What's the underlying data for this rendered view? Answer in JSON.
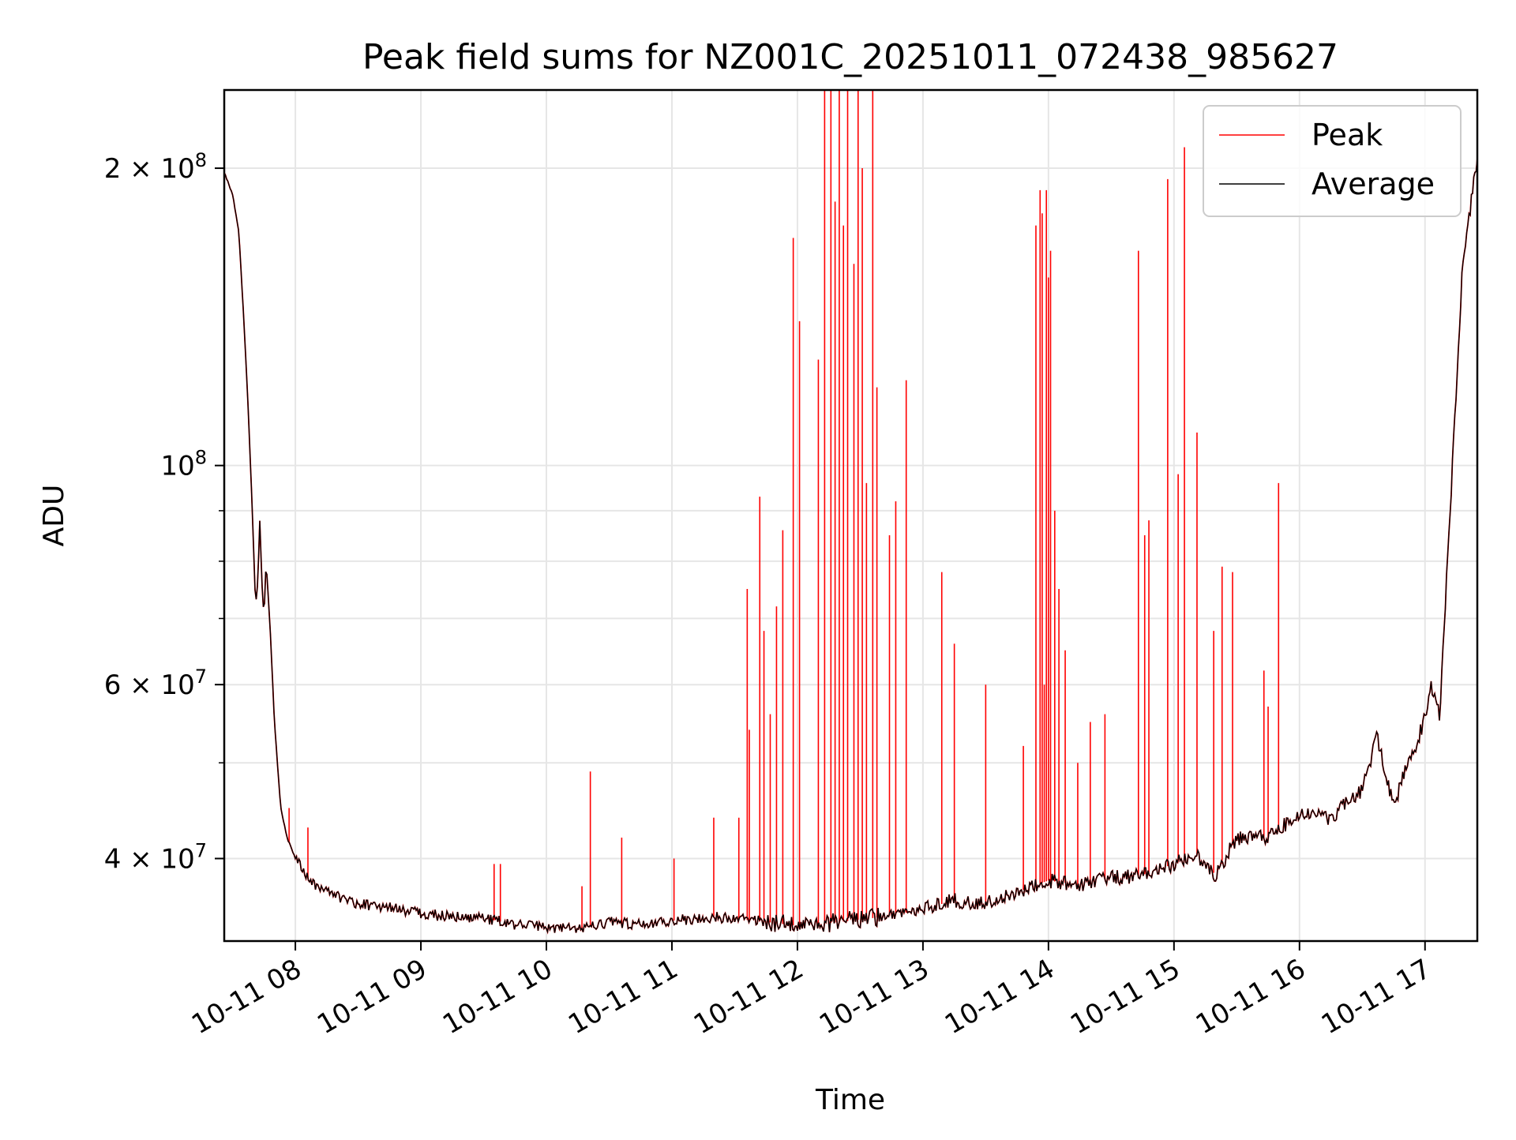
{
  "chart_data": {
    "type": "line",
    "title": "Peak field sums for NZ001C_20251011_072438_985627",
    "xlabel": "Time",
    "ylabel": "ADU",
    "yscale": "log",
    "ylim": [
      33000000,
      240000000
    ],
    "xlim": [
      "2025-10-11 07:26",
      "2025-10-11 17:25"
    ],
    "grid": true,
    "legend_position": "top-right",
    "x_ticks": [
      "2025-10-11 08:00",
      "2025-10-11 09:00",
      "2025-10-11 10:00",
      "2025-10-11 11:00",
      "2025-10-11 12:00",
      "2025-10-11 13:00",
      "2025-10-11 14:00",
      "2025-10-11 15:00",
      "2025-10-11 16:00",
      "2025-10-11 17:00"
    ],
    "x_tick_labels": [
      "10-11 08",
      "10-11 09",
      "10-11 10",
      "10-11 11",
      "10-11 12",
      "10-11 13",
      "10-11 14",
      "10-11 15",
      "10-11 16",
      "10-11 17"
    ],
    "y_ticks": [
      {
        "value": 40000000,
        "base": "4 × 10",
        "exp": "7"
      },
      {
        "value": 60000000,
        "base": "6 × 10",
        "exp": "7"
      },
      {
        "value": 100000000,
        "base": "10",
        "exp": "8"
      },
      {
        "value": 200000000,
        "base": "2 × 10",
        "exp": "8"
      }
    ],
    "series": [
      {
        "name": "Average",
        "color": "#000000",
        "points": [
          [
            "2025-10-11 07:26",
            198000000
          ],
          [
            "2025-10-11 07:30",
            188000000
          ],
          [
            "2025-10-11 07:33",
            172000000
          ],
          [
            "2025-10-11 07:35",
            145000000
          ],
          [
            "2025-10-11 07:37",
            120000000
          ],
          [
            "2025-10-11 07:39",
            95000000
          ],
          [
            "2025-10-11 07:41",
            72000000
          ],
          [
            "2025-10-11 07:42",
            76000000
          ],
          [
            "2025-10-11 07:43",
            88000000
          ],
          [
            "2025-10-11 07:44",
            76000000
          ],
          [
            "2025-10-11 07:45",
            70000000
          ],
          [
            "2025-10-11 07:46",
            80000000
          ],
          [
            "2025-10-11 07:48",
            68000000
          ],
          [
            "2025-10-11 07:50",
            55000000
          ],
          [
            "2025-10-11 07:53",
            45000000
          ],
          [
            "2025-10-11 07:56",
            42000000
          ],
          [
            "2025-10-11 08:00",
            40000000
          ],
          [
            "2025-10-11 08:05",
            38500000
          ],
          [
            "2025-10-11 08:10",
            37500000
          ],
          [
            "2025-10-11 08:20",
            36600000
          ],
          [
            "2025-10-11 08:30",
            36000000
          ],
          [
            "2025-10-11 08:45",
            35700000
          ],
          [
            "2025-10-11 09:00",
            35200000
          ],
          [
            "2025-10-11 09:15",
            34900000
          ],
          [
            "2025-10-11 09:30",
            34800000
          ],
          [
            "2025-10-11 09:45",
            34300000
          ],
          [
            "2025-10-11 10:00",
            34100000
          ],
          [
            "2025-10-11 10:15",
            33900000
          ],
          [
            "2025-10-11 10:30",
            34500000
          ],
          [
            "2025-10-11 10:45",
            34300000
          ],
          [
            "2025-10-11 11:00",
            34600000
          ],
          [
            "2025-10-11 11:20",
            34900000
          ],
          [
            "2025-10-11 11:40",
            34600000
          ],
          [
            "2025-10-11 12:00",
            34200000
          ],
          [
            "2025-10-11 12:20",
            34500000
          ],
          [
            "2025-10-11 12:40",
            34900000
          ],
          [
            "2025-10-11 13:00",
            35500000
          ],
          [
            "2025-10-11 13:15",
            36300000
          ],
          [
            "2025-10-11 13:30",
            36000000
          ],
          [
            "2025-10-11 13:45",
            37000000
          ],
          [
            "2025-10-11 14:00",
            38000000
          ],
          [
            "2025-10-11 14:15",
            37600000
          ],
          [
            "2025-10-11 14:30",
            38200000
          ],
          [
            "2025-10-11 14:45",
            38500000
          ],
          [
            "2025-10-11 15:00",
            39500000
          ],
          [
            "2025-10-11 15:10",
            40500000
          ],
          [
            "2025-10-11 15:20",
            38500000
          ],
          [
            "2025-10-11 15:30",
            42000000
          ],
          [
            "2025-10-11 15:45",
            42000000
          ],
          [
            "2025-10-11 16:00",
            44500000
          ],
          [
            "2025-10-11 16:15",
            44000000
          ],
          [
            "2025-10-11 16:30",
            47000000
          ],
          [
            "2025-10-11 16:37",
            53000000
          ],
          [
            "2025-10-11 16:45",
            45000000
          ],
          [
            "2025-10-11 16:50",
            49000000
          ],
          [
            "2025-10-11 16:55",
            51000000
          ],
          [
            "2025-10-11 17:00",
            56000000
          ],
          [
            "2025-10-11 17:03",
            60000000
          ],
          [
            "2025-10-11 17:07",
            56000000
          ],
          [
            "2025-10-11 17:12",
            90000000
          ],
          [
            "2025-10-11 17:18",
            160000000
          ],
          [
            "2025-10-11 17:25",
            205000000
          ]
        ]
      },
      {
        "name": "Peak",
        "color": "#ff0000",
        "spikes": [
          [
            "2025-10-11 07:57",
            45000000
          ],
          [
            "2025-10-11 08:06",
            43000000
          ],
          [
            "2025-10-11 09:35",
            39500000
          ],
          [
            "2025-10-11 09:38",
            39500000
          ],
          [
            "2025-10-11 10:17",
            37500000
          ],
          [
            "2025-10-11 10:21",
            49000000
          ],
          [
            "2025-10-11 10:36",
            42000000
          ],
          [
            "2025-10-11 11:01",
            40000000
          ],
          [
            "2025-10-11 11:20",
            44000000
          ],
          [
            "2025-10-11 11:32",
            44000000
          ],
          [
            "2025-10-11 11:36",
            75000000
          ],
          [
            "2025-10-11 11:37",
            54000000
          ],
          [
            "2025-10-11 11:42",
            93000000
          ],
          [
            "2025-10-11 11:44",
            68000000
          ],
          [
            "2025-10-11 11:47",
            56000000
          ],
          [
            "2025-10-11 11:50",
            72000000
          ],
          [
            "2025-10-11 11:53",
            86000000
          ],
          [
            "2025-10-11 11:58",
            170000000
          ],
          [
            "2025-10-11 12:01",
            140000000
          ],
          [
            "2025-10-11 12:10",
            128000000
          ],
          [
            "2025-10-11 12:13",
            240000000
          ],
          [
            "2025-10-11 12:16",
            240000000
          ],
          [
            "2025-10-11 12:18",
            185000000
          ],
          [
            "2025-10-11 12:20",
            240000000
          ],
          [
            "2025-10-11 12:22",
            175000000
          ],
          [
            "2025-10-11 12:24",
            240000000
          ],
          [
            "2025-10-11 12:27",
            160000000
          ],
          [
            "2025-10-11 12:29",
            240000000
          ],
          [
            "2025-10-11 12:31",
            200000000
          ],
          [
            "2025-10-11 12:33",
            96000000
          ],
          [
            "2025-10-11 12:36",
            240000000
          ],
          [
            "2025-10-11 12:38",
            120000000
          ],
          [
            "2025-10-11 12:44",
            85000000
          ],
          [
            "2025-10-11 12:47",
            92000000
          ],
          [
            "2025-10-11 12:52",
            122000000
          ],
          [
            "2025-10-11 13:09",
            78000000
          ],
          [
            "2025-10-11 13:15",
            66000000
          ],
          [
            "2025-10-11 13:30",
            60000000
          ],
          [
            "2025-10-11 13:48",
            52000000
          ],
          [
            "2025-10-11 13:58",
            60000000
          ],
          [
            "2025-10-11 13:54",
            175000000
          ],
          [
            "2025-10-11 13:56",
            190000000
          ],
          [
            "2025-10-11 13:57",
            180000000
          ],
          [
            "2025-10-11 13:59",
            190000000
          ],
          [
            "2025-10-11 14:00",
            155000000
          ],
          [
            "2025-10-11 14:01",
            165000000
          ],
          [
            "2025-10-11 14:03",
            90000000
          ],
          [
            "2025-10-11 14:05",
            75000000
          ],
          [
            "2025-10-11 14:08",
            65000000
          ],
          [
            "2025-10-11 14:14",
            50000000
          ],
          [
            "2025-10-11 14:20",
            55000000
          ],
          [
            "2025-10-11 14:27",
            56000000
          ],
          [
            "2025-10-11 14:43",
            165000000
          ],
          [
            "2025-10-11 14:46",
            85000000
          ],
          [
            "2025-10-11 14:48",
            88000000
          ],
          [
            "2025-10-11 14:57",
            195000000
          ],
          [
            "2025-10-11 15:02",
            98000000
          ],
          [
            "2025-10-11 15:05",
            210000000
          ],
          [
            "2025-10-11 15:11",
            108000000
          ],
          [
            "2025-10-11 15:19",
            68000000
          ],
          [
            "2025-10-11 15:23",
            79000000
          ],
          [
            "2025-10-11 15:28",
            78000000
          ],
          [
            "2025-10-11 15:43",
            62000000
          ],
          [
            "2025-10-11 15:45",
            57000000
          ],
          [
            "2025-10-11 15:50",
            96000000
          ]
        ]
      }
    ]
  }
}
